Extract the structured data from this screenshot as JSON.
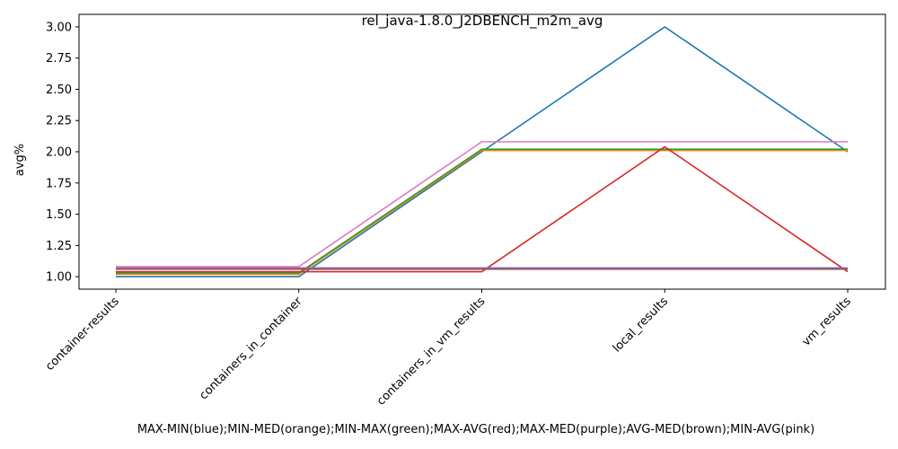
{
  "chart_data": {
    "type": "line",
    "title": "rel_java-1.8.0_J2DBENCH_m2m_avg",
    "xlabel": "MAX-MIN(blue);MIN-MED(orange);MIN-MAX(green);MAX-AVG(red);MAX-MED(purple);AVG-MED(brown);MIN-AVG(pink)",
    "ylabel": "avg%",
    "categories": [
      "container-results",
      "containers_in_container",
      "containers_in_vm_results",
      "local_results",
      "vm_results"
    ],
    "ylim": [
      0.9,
      3.1
    ],
    "yticks": [
      "1.00",
      "1.25",
      "1.50",
      "1.75",
      "2.00",
      "2.25",
      "2.50",
      "2.75",
      "3.00"
    ],
    "grid": false,
    "series": [
      {
        "values": [
          1.0,
          1.0,
          2.0,
          3.0,
          2.0
        ],
        "color": "#1f77b4"
      },
      {
        "values": [
          1.02,
          1.02,
          2.01,
          2.01,
          2.01
        ],
        "color": "#ff7f0e"
      },
      {
        "values": [
          1.03,
          1.03,
          2.02,
          2.02,
          2.02
        ],
        "color": "#2ca02c"
      },
      {
        "values": [
          1.04,
          1.04,
          1.04,
          2.04,
          1.04
        ],
        "color": "#d62728"
      },
      {
        "values": [
          1.07,
          1.07,
          1.07,
          1.07,
          1.07
        ],
        "color": "#9467bd"
      },
      {
        "values": [
          1.06,
          1.06,
          1.06,
          1.06,
          1.06
        ],
        "color": "#8c564b"
      },
      {
        "values": [
          1.08,
          1.08,
          2.08,
          2.08,
          2.08
        ],
        "color": "#e377c2"
      }
    ]
  }
}
